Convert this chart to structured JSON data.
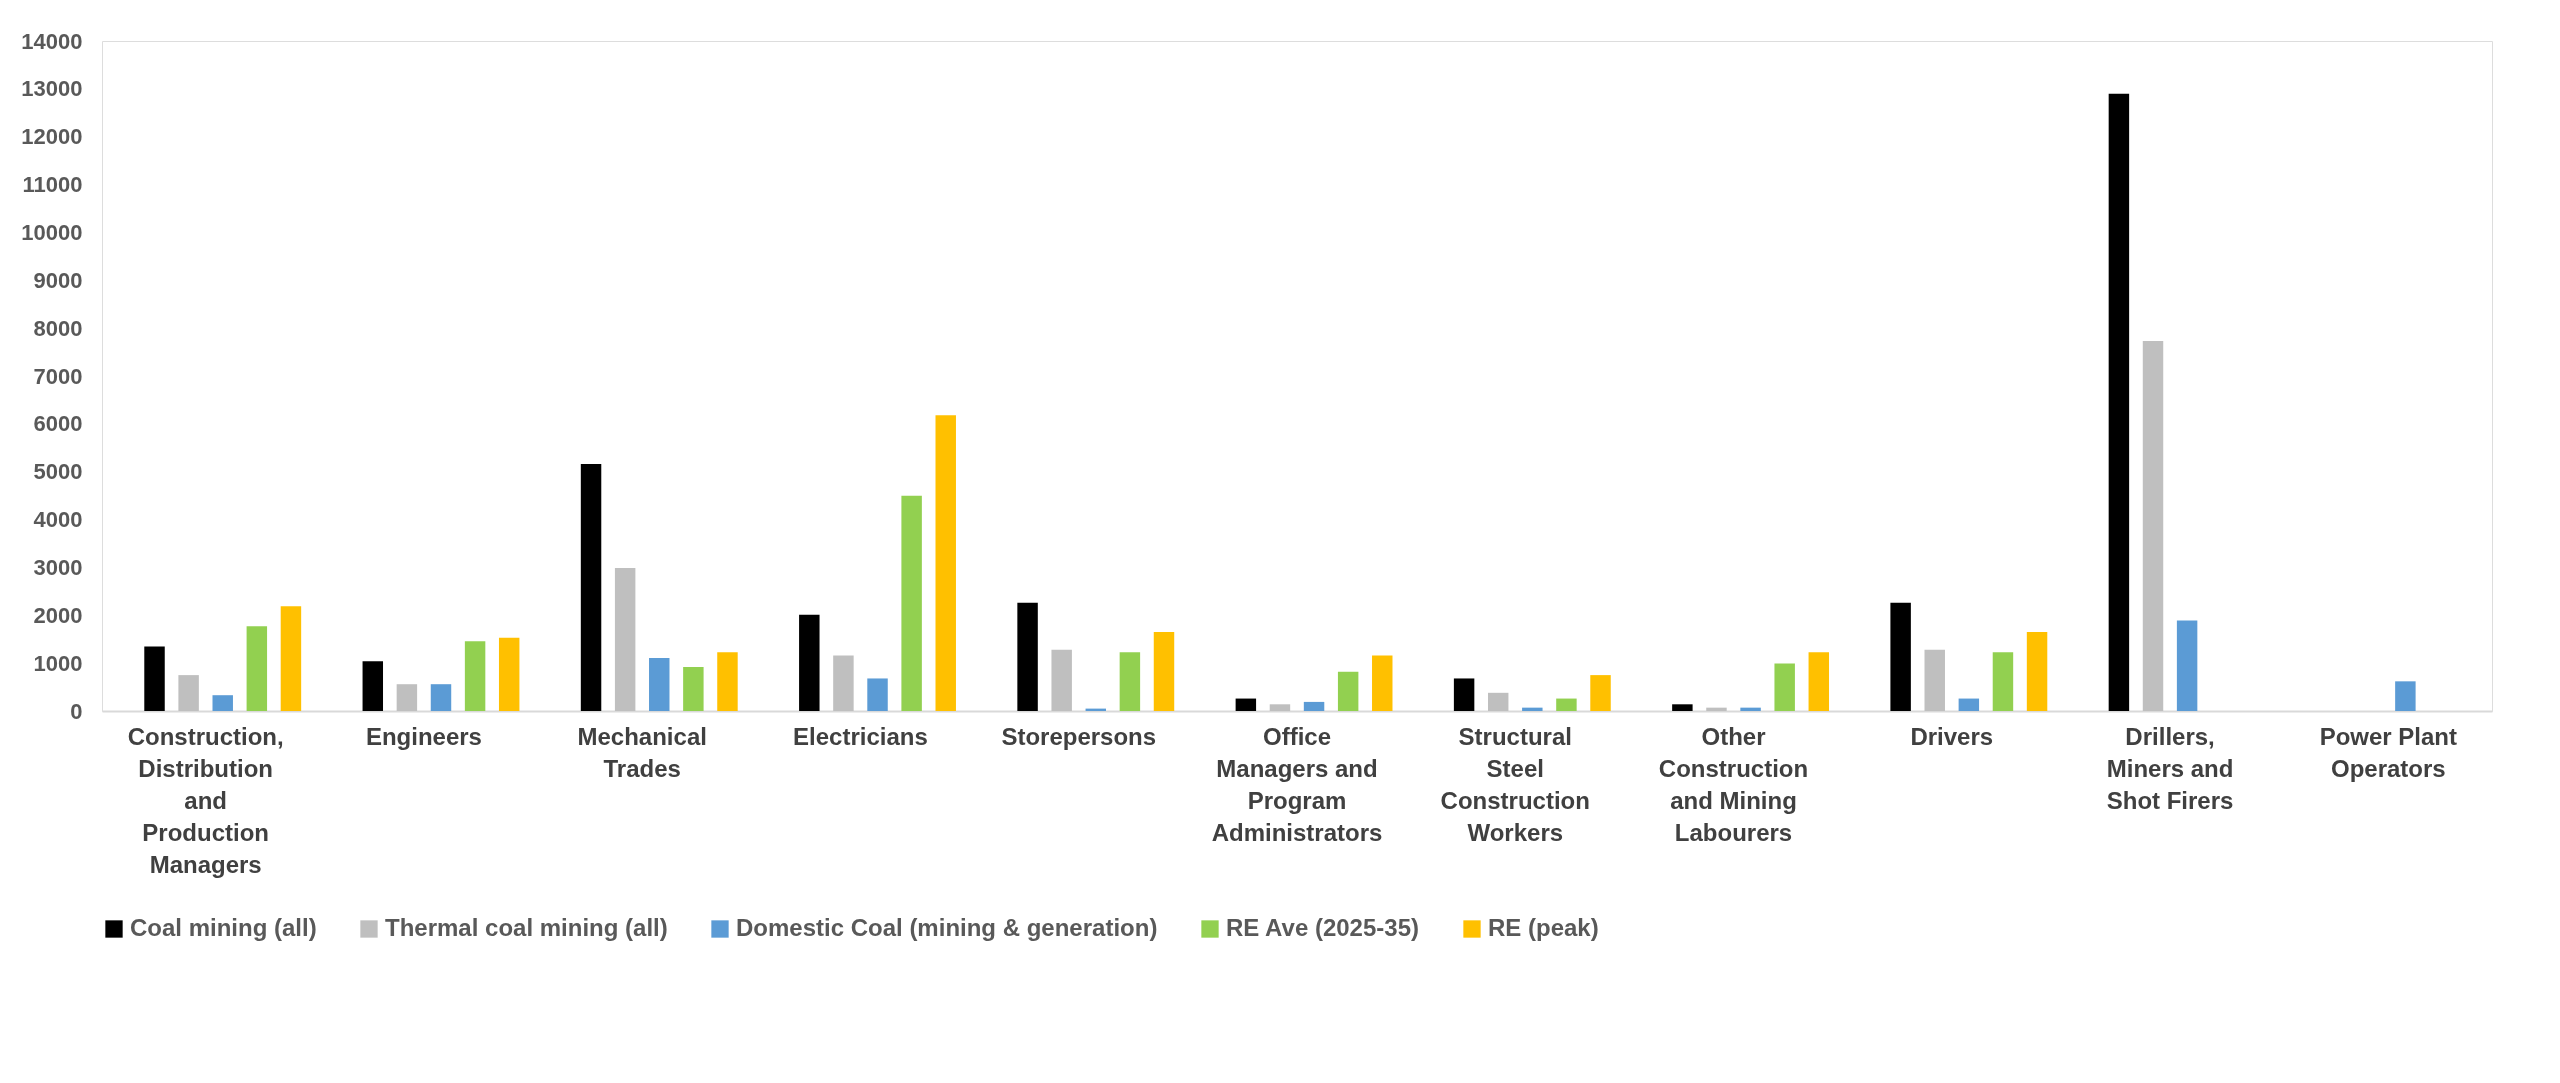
{
  "chart_data": {
    "type": "bar",
    "categories": [
      "Construction, Distribution and Production Managers",
      "Engineers",
      "Mechanical Trades",
      "Electricians",
      "Storepersons",
      "Office Managers and Program Administrators",
      "Structural Steel Construction Workers",
      "Other Construction and Mining Labourers",
      "Drivers",
      "Drillers, Miners and Shot Firers",
      "Power Plant Operators"
    ],
    "series": [
      {
        "name": "Coal mining (all)",
        "color": "#000000",
        "values": [
          1350,
          1040,
          5160,
          2010,
          2260,
          260,
          680,
          140,
          2260,
          12900,
          null
        ]
      },
      {
        "name": "Thermal coal mining (all)",
        "color": "#bfbfbf",
        "values": [
          750,
          560,
          2990,
          1160,
          1280,
          140,
          380,
          70,
          1280,
          7730,
          null
        ]
      },
      {
        "name": "Domestic Coal (mining & generation)",
        "color": "#5b9bd5",
        "values": [
          330,
          560,
          1110,
          680,
          50,
          190,
          70,
          70,
          260,
          1890,
          620
        ]
      },
      {
        "name": "RE Ave (2025-35)",
        "color": "#92d050",
        "values": [
          1770,
          1460,
          920,
          4500,
          1230,
          820,
          260,
          990,
          1230,
          null,
          null
        ]
      },
      {
        "name": "RE (peak)",
        "color": "#ffc000",
        "values": [
          2190,
          1530,
          1230,
          6180,
          1650,
          1160,
          750,
          1230,
          1650,
          null,
          null
        ]
      }
    ],
    "ylim": [
      0,
      14000
    ],
    "yticks": [
      0,
      1000,
      2000,
      3000,
      4000,
      5000,
      6000,
      7000,
      8000,
      9000,
      10000,
      11000,
      12000,
      13000,
      14000
    ],
    "grid": false,
    "legend": "bottom"
  }
}
